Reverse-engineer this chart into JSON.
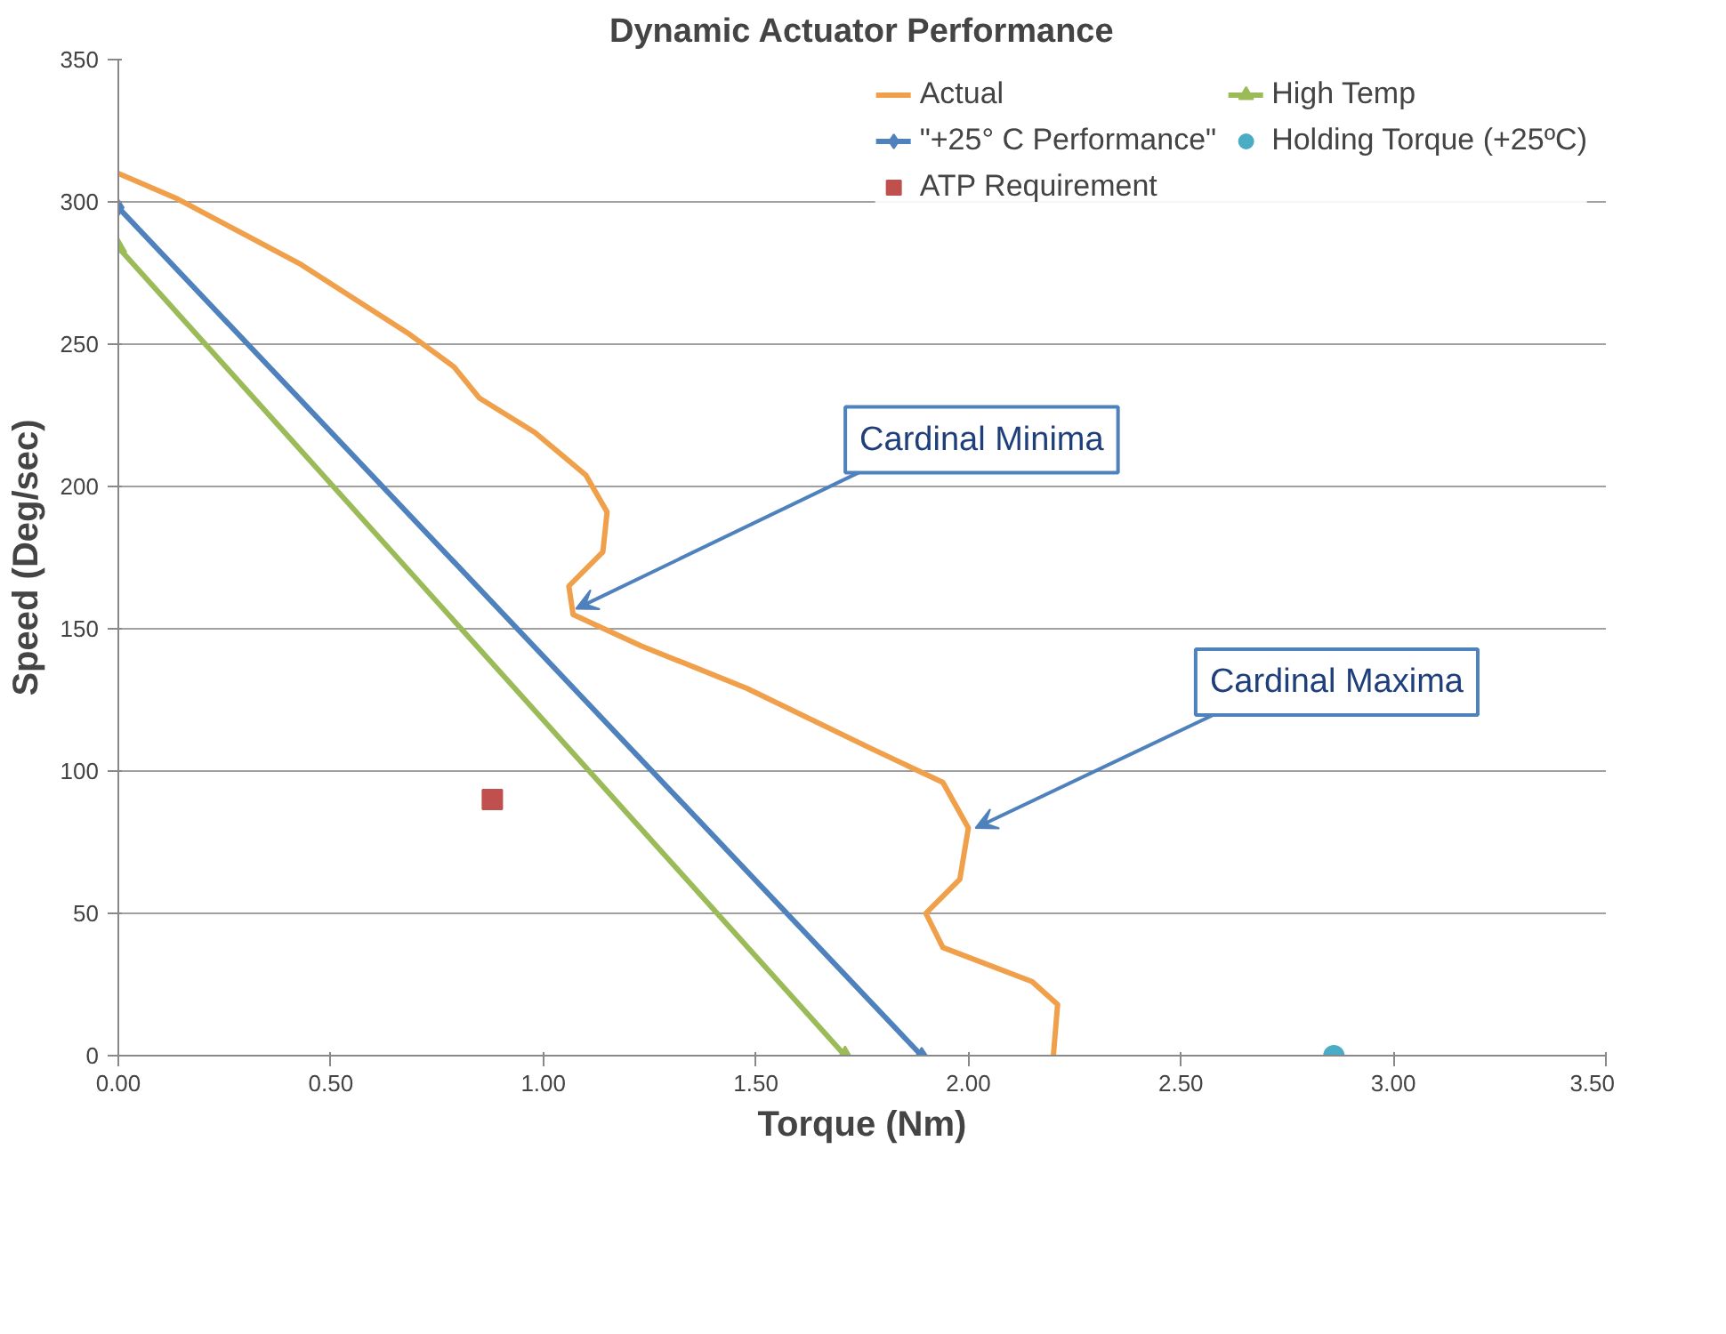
{
  "chart_data": {
    "type": "line",
    "title": "Dynamic Actuator Performance",
    "xlabel": "Torque (Nm)",
    "ylabel": "Speed (Deg/sec)",
    "xlim": [
      0,
      3.5
    ],
    "xticks": [
      {
        "value": 0,
        "label": "0.00"
      },
      {
        "value": 0.5,
        "label": "0.50"
      },
      {
        "value": 1,
        "label": "1.00"
      },
      {
        "value": 1.5,
        "label": "1.50"
      },
      {
        "value": 2,
        "label": "2.00"
      },
      {
        "value": 2.5,
        "label": "2.50"
      },
      {
        "value": 3,
        "label": "3.00"
      },
      {
        "value": 3.5,
        "label": "3.50"
      }
    ],
    "ylim": [
      0,
      350
    ],
    "yticks": [
      0,
      50,
      100,
      150,
      200,
      250,
      300,
      350
    ],
    "grid": "y",
    "legend": "top right",
    "series": [
      {
        "name": "Actual",
        "color": "#f0a04b",
        "marker": "none",
        "x": [
          0,
          0.14,
          0.43,
          0.68,
          0.79,
          0.85,
          0.98,
          1.1,
          1.15,
          1.14,
          1.06,
          1.07,
          1.23,
          1.48,
          1.77,
          1.94,
          2.0,
          1.98,
          1.9,
          1.94,
          2.15,
          2.21,
          2.2
        ],
        "values": [
          310,
          301,
          278,
          254,
          242,
          231,
          219,
          204,
          191,
          177,
          165,
          155,
          144,
          129,
          108,
          96,
          80,
          62,
          50,
          38,
          26,
          18,
          0
        ]
      },
      {
        "name": "\"+25° C Performance\"",
        "color": "#4f81bd",
        "marker": "diamond",
        "x": [
          0,
          1.89
        ],
        "values": [
          298,
          0
        ]
      },
      {
        "name": "ATP Requirement",
        "type": "scatter",
        "color": "#c0504d",
        "marker": "square",
        "x": [
          0.88
        ],
        "values": [
          90
        ]
      },
      {
        "name": "High Temp",
        "color": "#9bbb59",
        "marker": "triangle",
        "x": [
          0,
          1.71
        ],
        "values": [
          284,
          0
        ]
      },
      {
        "name": "Holding Torque (+25ºC)",
        "type": "scatter",
        "color": "#4bacc6",
        "marker": "circle",
        "x": [
          2.86
        ],
        "values": [
          0
        ]
      }
    ],
    "annotations": [
      {
        "text": "Cardinal Minima",
        "x": 1.06,
        "y": 157
      },
      {
        "text": "Cardinal Maxima",
        "x": 2.0,
        "y": 80
      }
    ]
  }
}
